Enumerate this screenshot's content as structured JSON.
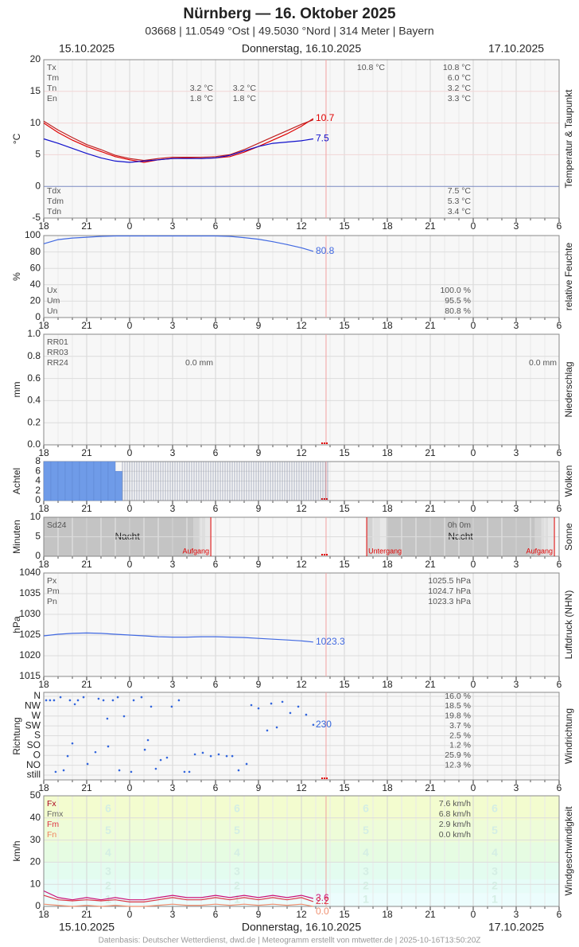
{
  "header": {
    "title": "Nürnberg  —  16. Oktober 2025",
    "subtitle": "03668  |  11.0549 °Ost  |  49.5030 °Nord  |  314 Meter  |  Bayern",
    "date_left": "15.10.2025",
    "date_center": "Donnerstag, 16.10.2025",
    "date_right": "17.10.2025"
  },
  "footer": {
    "credit": "Datenbasis: Deutscher Wetterdienst, dwd.de | Meteogramm erstellt von mtwetter.de | 2025-10-16T13:50:20Z"
  },
  "x_axis": {
    "xlim": [
      0,
      36
    ],
    "now": 19.72,
    "xticks": [
      {
        "value": 0,
        "label": "18"
      },
      {
        "value": 3,
        "label": "21"
      },
      {
        "value": 6,
        "label": "0"
      },
      {
        "value": 9,
        "label": "3"
      },
      {
        "value": 12,
        "label": "6"
      },
      {
        "value": 15,
        "label": "9"
      },
      {
        "value": 18,
        "label": "12"
      },
      {
        "value": 21,
        "label": "15"
      },
      {
        "value": 24,
        "label": "18"
      },
      {
        "value": 27,
        "label": "21"
      },
      {
        "value": 30,
        "label": "0"
      },
      {
        "value": 33,
        "label": "3"
      },
      {
        "value": 36,
        "label": "6"
      }
    ]
  },
  "chart_data": [
    {
      "type": "line",
      "ylabel": "°C",
      "side_label": "Temperatur & Taupunkt",
      "ylim": [
        -5,
        20
      ],
      "yticks": [
        -5,
        0,
        5,
        10,
        15,
        20
      ],
      "x": [
        0,
        1,
        2,
        3,
        4,
        5,
        6,
        7,
        8,
        9,
        10,
        11,
        12,
        13,
        14,
        15,
        16,
        17,
        18,
        18.83
      ],
      "series": [
        {
          "color": "#e00000",
          "end_label": true,
          "values": [
            10,
            8.5,
            7.3,
            6.3,
            5.5,
            4.7,
            4.2,
            3.8,
            4.2,
            4.4,
            4.5,
            4.4,
            4.5,
            4.7,
            5.4,
            6.3,
            7.3,
            8.3,
            9.5,
            10.7
          ]
        },
        {
          "color": "#c02020",
          "values": [
            10.3,
            8.9,
            7.7,
            6.6,
            5.8,
            4.9,
            4.4,
            4.1,
            4.4,
            4.6,
            4.6,
            4.6,
            4.7,
            5.0,
            5.8,
            6.8,
            7.8,
            8.8,
            9.8,
            10.5
          ]
        },
        {
          "color": "#1010cc",
          "end_label": true,
          "values": [
            7.5,
            6.8,
            6.0,
            5.2,
            4.5,
            4.0,
            3.8,
            4.0,
            4.2,
            4.4,
            4.4,
            4.4,
            4.5,
            4.9,
            5.6,
            6.3,
            6.8,
            7.0,
            7.2,
            7.5
          ]
        }
      ],
      "stats": [
        {
          "name": "Tx",
          "cells": [
            null,
            null,
            "10.8 °C",
            "10.8 °C"
          ]
        },
        {
          "name": "Tm",
          "cells": [
            null,
            null,
            null,
            "6.0 °C"
          ]
        },
        {
          "name": "Tn",
          "cells": [
            "3.2 °C",
            "3.2 °C",
            null,
            "3.2 °C"
          ]
        },
        {
          "name": "En",
          "cells": [
            "1.8 °C",
            "1.8 °C",
            null,
            "3.3 °C"
          ]
        }
      ],
      "stats_bottom": [
        {
          "name": "Tdx",
          "cells": [
            "7.5 °C"
          ]
        },
        {
          "name": "Tdm",
          "cells": [
            "5.3 °C"
          ]
        },
        {
          "name": "Tdn",
          "cells": [
            "3.4 °C"
          ]
        }
      ]
    },
    {
      "type": "line",
      "ylabel": "%",
      "side_label": "relative Feuchte",
      "ylim": [
        0,
        100
      ],
      "yticks": [
        0,
        20,
        40,
        60,
        80,
        100
      ],
      "x": [
        0,
        1,
        2,
        3,
        4,
        5,
        6,
        7,
        8,
        9,
        10,
        11,
        12,
        13,
        14,
        15,
        16,
        17,
        18,
        18.83
      ],
      "series": [
        {
          "color": "#4169e1",
          "end_label": true,
          "values": [
            90,
            95,
            97,
            98,
            99,
            99.5,
            99.5,
            99.5,
            99.5,
            99.5,
            99.5,
            99.5,
            99.5,
            99,
            97.5,
            95.5,
            92.5,
            89,
            85,
            80.8
          ]
        }
      ],
      "stats_bottom": [
        {
          "name": "Ux",
          "cells": [
            "100.0 %"
          ]
        },
        {
          "name": "Um",
          "cells": [
            "95.5 %"
          ]
        },
        {
          "name": "Un",
          "cells": [
            "80.8 %"
          ]
        }
      ]
    },
    {
      "type": "precip",
      "ylabel": "mm",
      "side_label": "Niederschlag",
      "ylim": [
        0,
        1
      ],
      "yticks": [
        {
          "value": 0,
          "label": "0.0"
        },
        0.2,
        0.4,
        0.6,
        0.8,
        {
          "value": 1,
          "label": "1.0"
        }
      ],
      "stats": [
        {
          "name": "RR01",
          "cells": []
        },
        {
          "name": "RR03",
          "cells": []
        },
        {
          "name": "RR24",
          "cells": [
            "0.0 mm",
            "0.0 mm"
          ]
        }
      ]
    },
    {
      "type": "bar",
      "ylabel": "Achtel",
      "side_label": "Wolken",
      "ylim": [
        0,
        8
      ],
      "yticks": [
        0,
        2,
        4,
        6,
        8
      ],
      "x": [
        0,
        0.5,
        1,
        1.5,
        2,
        2.5,
        3,
        3.5,
        4,
        4.5,
        5,
        5.5,
        6,
        6.5,
        7,
        7.5,
        8,
        8.5,
        9,
        9.5,
        10,
        10.5,
        11,
        11.5,
        12,
        12.5,
        13,
        13.5,
        14,
        14.5,
        15,
        15.5,
        16,
        16.5,
        17,
        17.5,
        18,
        18.5,
        19,
        19.5
      ],
      "series": [
        {
          "color": "#6f9be8",
          "filled": true,
          "values": [
            8,
            8,
            8,
            8,
            8,
            8,
            8,
            8,
            8,
            8,
            6,
            null,
            null,
            null,
            null,
            null,
            null,
            null,
            null,
            null,
            null,
            null,
            null,
            null,
            null,
            null,
            null,
            null,
            null,
            null,
            null,
            null,
            null,
            null,
            null,
            null,
            null,
            null,
            null,
            null
          ]
        },
        {
          "color": "#8890a8",
          "filled": false,
          "values": [
            null,
            null,
            null,
            null,
            null,
            null,
            null,
            null,
            null,
            null,
            null,
            8,
            8,
            8,
            8,
            8,
            8,
            8,
            8,
            8,
            8,
            8,
            8,
            8,
            8,
            8,
            8,
            8,
            8,
            8,
            8,
            8,
            8,
            8,
            8,
            8,
            8,
            8,
            8,
            8
          ]
        }
      ]
    },
    {
      "type": "sun",
      "ylabel": "Minuten",
      "side_label": "Sonne",
      "ylim": [
        0,
        10
      ],
      "yticks": [
        0,
        5,
        10
      ],
      "night_labels": [
        "Nacht",
        "Nacht"
      ],
      "events": [
        {
          "label": "Aufgang",
          "x": 11.67
        },
        {
          "label": "Untergang",
          "x": 22.56
        },
        {
          "label": "Aufgang",
          "x": 35.67
        }
      ],
      "stats": [
        {
          "name": "Sd24",
          "cells": [
            "0h 0m"
          ]
        }
      ]
    },
    {
      "type": "line",
      "ylabel": "hPa",
      "side_label": "Luftdruck (NHN)",
      "ylim": [
        1015,
        1040
      ],
      "yticks": [
        1015,
        1020,
        1025,
        1030,
        1035,
        1040
      ],
      "x": [
        0,
        1,
        2,
        3,
        4,
        5,
        6,
        7,
        8,
        9,
        10,
        11,
        12,
        13,
        14,
        15,
        16,
        17,
        18,
        18.83
      ],
      "series": [
        {
          "color": "#4169e1",
          "end_label": true,
          "values": [
            1024.8,
            1025.2,
            1025.4,
            1025.5,
            1025.4,
            1025.2,
            1025.0,
            1024.8,
            1024.6,
            1024.5,
            1024.5,
            1024.6,
            1024.6,
            1024.5,
            1024.4,
            1024.2,
            1024.0,
            1023.8,
            1023.6,
            1023.3
          ]
        }
      ],
      "stats": [
        {
          "name": "Px",
          "cells": [
            "1025.5 hPa"
          ]
        },
        {
          "name": "Pm",
          "cells": [
            "1024.7 hPa"
          ]
        },
        {
          "name": "Pn",
          "cells": [
            "1023.3 hPa"
          ]
        }
      ]
    },
    {
      "type": "scatter",
      "ylabel": "Richtung",
      "side_label": "Windrichtung",
      "ylim": [
        0,
        360
      ],
      "yticks": [
        {
          "value": 360,
          "label": "N"
        },
        {
          "value": 315,
          "label": "NW"
        },
        {
          "value": 270,
          "label": "W"
        },
        {
          "value": 225,
          "label": "SW"
        },
        {
          "value": 180,
          "label": "S"
        },
        {
          "value": 135,
          "label": "SO"
        },
        {
          "value": 90,
          "label": "O"
        },
        {
          "value": 45,
          "label": "NO"
        },
        {
          "value": 0,
          "label": "still"
        }
      ],
      "percent_labels": [
        "16.0 %",
        "18.5 %",
        "19.8 %",
        "3.7 %",
        "2.5 %",
        "1.2 %",
        "25.9 %",
        "12.3 %"
      ],
      "color": "#3366dd",
      "x": [
        0.17,
        0.44,
        0.72,
        0.83,
        1.17,
        1.39,
        1.67,
        1.83,
        2.0,
        2.17,
        2.39,
        2.78,
        3.06,
        3.61,
        3.83,
        4.17,
        4.44,
        4.5,
        4.83,
        5.17,
        5.28,
        5.61,
        6.11,
        6.28,
        6.83,
        7.06,
        7.28,
        7.5,
        7.83,
        8.17,
        8.61,
        8.94,
        9.44,
        9.83,
        10.17,
        10.56,
        11.11,
        11.67,
        12.22,
        12.78,
        13.17,
        13.61,
        14.17,
        14.5,
        15.0,
        15.61,
        15.89,
        16.28,
        16.67,
        17.22,
        17.78,
        18.33,
        18.83
      ],
      "values": [
        342,
        342,
        342,
        15,
        356,
        22,
        87,
        342,
        145,
        324,
        342,
        356,
        51,
        105,
        349,
        342,
        258,
        131,
        342,
        356,
        22,
        269,
        15,
        342,
        356,
        116,
        160,
        313,
        29,
        69,
        80,
        313,
        342,
        15,
        15,
        95,
        102,
        87,
        95,
        87,
        87,
        22,
        51,
        320,
        305,
        204,
        327,
        218,
        335,
        284,
        313,
        276,
        230
      ]
    },
    {
      "type": "line",
      "ylabel": "km/h",
      "side_label": "Windgeschwindigkeit",
      "ylim": [
        0,
        50
      ],
      "yticks": [
        0,
        10,
        20,
        30,
        40,
        50
      ],
      "beaufort": [
        {
          "value": 3,
          "label": "1"
        },
        {
          "value": 9,
          "label": "2"
        },
        {
          "value": 15.5,
          "label": "3"
        },
        {
          "value": 24,
          "label": "4"
        },
        {
          "value": 34,
          "label": "5"
        },
        {
          "value": 44,
          "label": "6"
        }
      ],
      "x": [
        0,
        1,
        2,
        3,
        4,
        5,
        6,
        7,
        8,
        9,
        10,
        11,
        12,
        13,
        14,
        15,
        16,
        17,
        18,
        18.83
      ],
      "series": [
        {
          "color": "#cc1177",
          "end_label": true,
          "values": [
            7,
            4,
            3,
            4,
            3,
            4,
            3,
            3,
            4,
            5,
            4,
            4,
            5,
            4,
            5,
            4,
            5,
            4,
            5,
            3.6
          ]
        },
        {
          "color": "#dd3344",
          "end_label": true,
          "values": [
            5,
            3,
            2.5,
            3,
            2.5,
            3,
            2,
            2,
            3,
            4,
            3,
            3,
            4,
            3,
            4,
            3,
            4,
            3,
            4,
            2.2
          ]
        },
        {
          "color": "#f09070",
          "end_label": true,
          "values": [
            1,
            0.5,
            0,
            0.5,
            0,
            0.5,
            0,
            0,
            0.5,
            1,
            0.5,
            0.5,
            1,
            0.5,
            1,
            0.5,
            1,
            0.5,
            1,
            0
          ],
          "value_labels": [
            null,
            null,
            null,
            null,
            null,
            null,
            null,
            null,
            null,
            null,
            null,
            null,
            null,
            null,
            null,
            null,
            null,
            null,
            null,
            "0.0"
          ]
        }
      ],
      "stats": [
        {
          "name": "Fx",
          "color": "#aa0022",
          "cells": [
            "7.6 km/h"
          ]
        },
        {
          "name": "Fmx",
          "color": "#666666",
          "cells": [
            "6.8 km/h"
          ]
        },
        {
          "name": "Fm",
          "color": "#dd3344",
          "cells": [
            "2.9 km/h"
          ]
        },
        {
          "name": "Fn",
          "color": "#f08060",
          "cells": [
            "0.0 km/h"
          ]
        }
      ]
    }
  ]
}
